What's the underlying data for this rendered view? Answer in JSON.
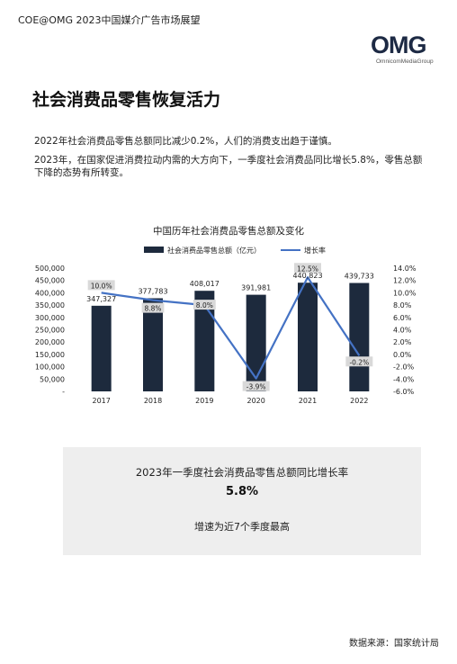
{
  "header": {
    "text": "COE@OMG 2023中国媒介广告市场展望"
  },
  "logo": {
    "main": "OMG",
    "sub": "OmnicomMediaGroup"
  },
  "page_title": "社会消费品零售恢复活力",
  "paragraphs": [
    "2022年社会消费品零售总额同比减少0.2%，人们的消费支出趋于谨慎。",
    "2023年，在国家促进消费拉动内需的大方向下，一季度社会消费品同比增长5.8%，零售总额下降的态势有所转变。"
  ],
  "chart_data": {
    "type": "bar",
    "title": "中国历年社会消费品零售总额及变化",
    "categories": [
      "2017",
      "2018",
      "2019",
      "2020",
      "2021",
      "2022"
    ],
    "series": [
      {
        "name": "社会消费品零售总额（亿元）",
        "type": "bar",
        "axis": "left",
        "values": [
          347327,
          377783,
          408017,
          391981,
          440823,
          439733
        ],
        "labels": [
          "347,327",
          "377,783",
          "408,017",
          "391,981",
          "440,823",
          "439,733"
        ]
      },
      {
        "name": "增长率",
        "type": "line",
        "axis": "right",
        "values": [
          10.0,
          8.8,
          8.0,
          -3.9,
          12.5,
          -0.2
        ],
        "labels": [
          "10.0%",
          "8.8%",
          "8.0%",
          "-3.9%",
          "12.5%",
          "-0.2%"
        ]
      }
    ],
    "y_left": {
      "min": 0,
      "max": 500000,
      "ticks": [
        "500,000",
        "450,000",
        "400,000",
        "350,000",
        "300,000",
        "250,000",
        "200,000",
        "150,000",
        "100,000",
        "50,000",
        "-"
      ]
    },
    "y_right": {
      "min": -6,
      "max": 14,
      "ticks": [
        "14.0%",
        "12.0%",
        "10.0%",
        "8.0%",
        "6.0%",
        "4.0%",
        "2.0%",
        "0.0%",
        "-2.0%",
        "-4.0%",
        "-6.0%"
      ]
    },
    "legend_position": "top",
    "grid": false,
    "colors": {
      "bar": "#1d2a3d",
      "line": "#4472c4",
      "label_bg": "#d9d9d9"
    }
  },
  "highlight": {
    "title": "2023年一季度社会消费品零售总额同比增长率",
    "value": "5.8%",
    "note": "增速为近7个季度最高"
  },
  "source": "数据来源：国家统计局"
}
